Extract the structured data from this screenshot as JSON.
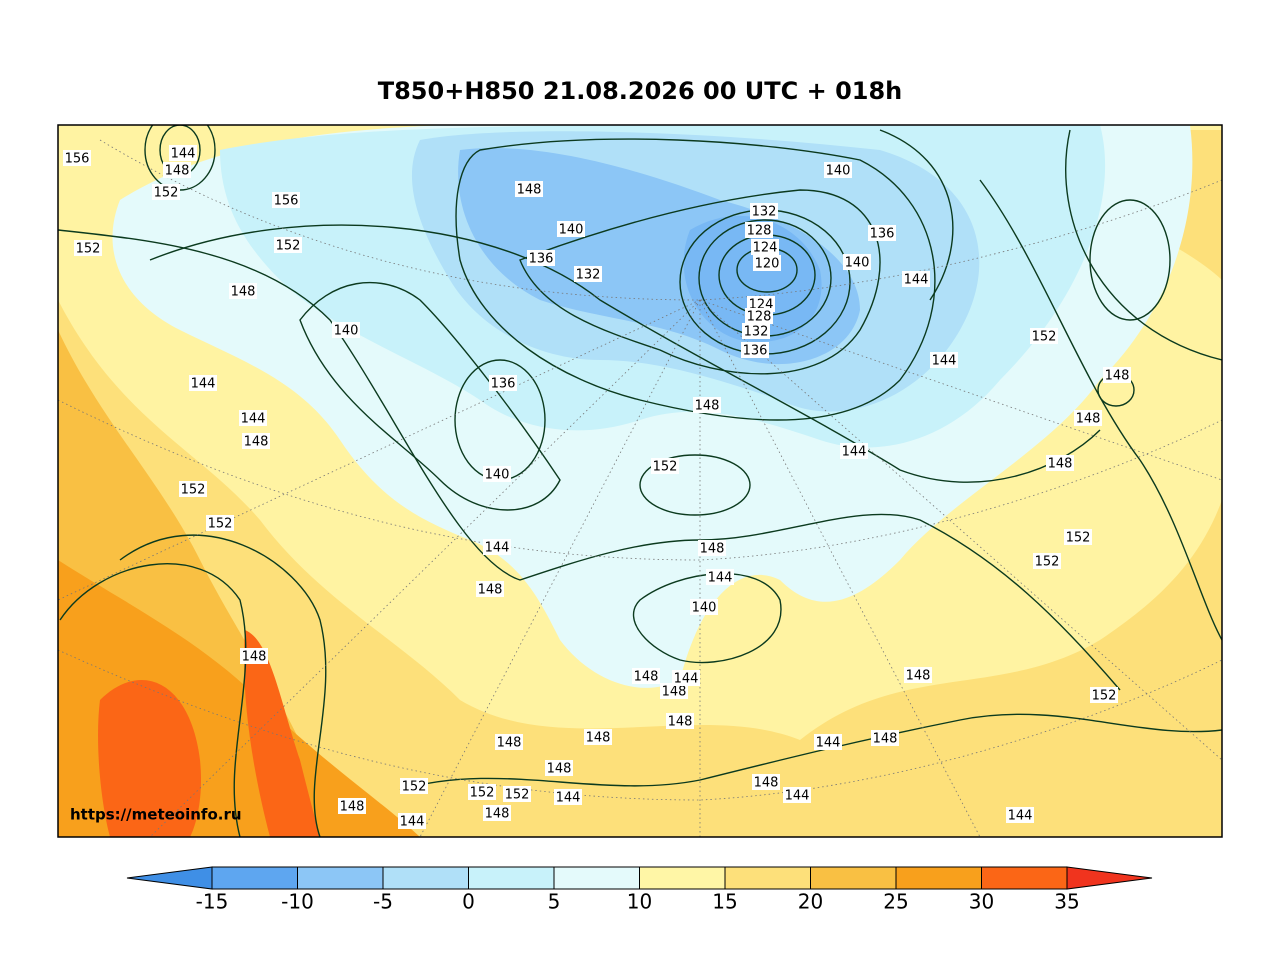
{
  "title": "T850+H850 21.08.2026 00 UTC + 018h",
  "watermark": "https://meteoinfo.ru",
  "colorbar": {
    "ticks": [
      -15,
      -10,
      -5,
      0,
      5,
      10,
      15,
      20,
      25,
      30,
      35
    ],
    "colors": [
      "#3f8fe6",
      "#5ea6f0",
      "#8cc6f6",
      "#b0e0f8",
      "#c8f2fa",
      "#e4fafb",
      "#fff6a6",
      "#fde07a",
      "#f9c043",
      "#f8a01c",
      "#fb6616",
      "#f0341e"
    ]
  },
  "contour_labels": [
    "156",
    "144",
    "148",
    "152",
    "156",
    "152",
    "152",
    "148",
    "140",
    "144",
    "144",
    "148",
    "152",
    "152",
    "148",
    "136",
    "140",
    "144",
    "148",
    "148",
    "140",
    "136",
    "132",
    "132",
    "128",
    "124",
    "120",
    "124",
    "128",
    "132",
    "136",
    "140",
    "136",
    "140",
    "144",
    "152",
    "148",
    "148",
    "144",
    "144",
    "148",
    "152",
    "148",
    "152",
    "152",
    "148",
    "144",
    "140",
    "148",
    "152",
    "148",
    "144",
    "144",
    "148",
    "144",
    "152",
    "148",
    "144",
    "148",
    "148",
    "144",
    "148",
    "148",
    "144",
    "148",
    "148",
    "152",
    "152",
    "148"
  ]
}
